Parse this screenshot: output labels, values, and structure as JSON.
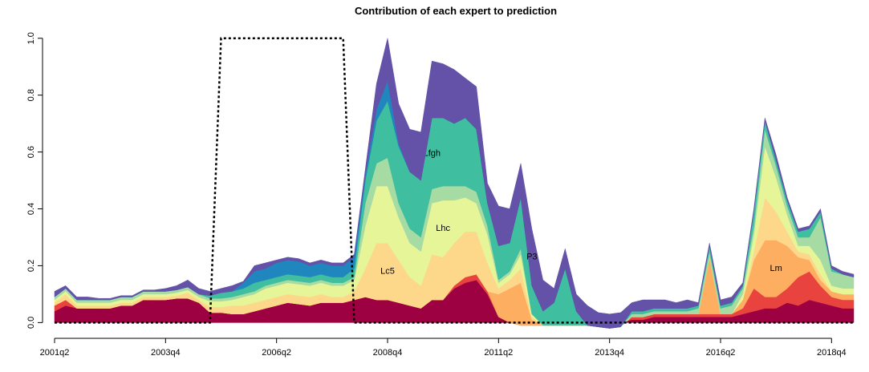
{
  "chart_data": {
    "type": "stacked_area",
    "title": "Contribution of each expert to prediction",
    "categories": [
      "2001q2",
      null,
      null,
      null,
      null,
      null,
      null,
      null,
      null,
      null,
      "2003q4",
      null,
      null,
      null,
      null,
      null,
      null,
      null,
      null,
      null,
      "2006q2",
      null,
      null,
      null,
      null,
      null,
      null,
      null,
      null,
      null,
      "2008q4",
      null,
      null,
      null,
      null,
      null,
      null,
      null,
      null,
      null,
      "2011q2",
      null,
      null,
      null,
      null,
      null,
      null,
      null,
      null,
      null,
      "2013q4",
      null,
      null,
      null,
      null,
      null,
      null,
      null,
      null,
      null,
      "2016q2",
      null,
      null,
      null,
      null,
      null,
      null,
      null,
      null,
      null,
      "2018q4",
      null,
      null
    ],
    "ylim": [
      -0.03,
      1.05
    ],
    "yticks": [
      {
        "value": 0,
        "label": "0.0"
      },
      {
        "value": 0.2,
        "label": "0.2"
      },
      {
        "value": 0.4,
        "label": "0.4"
      },
      {
        "value": 0.6,
        "label": "0.6"
      },
      {
        "value": 0.8,
        "label": "0.8"
      },
      {
        "value": 1,
        "label": "1.0"
      }
    ],
    "series": [
      {
        "color": "#9e0142",
        "values": [
          0.04,
          0.06,
          0.05,
          0.05,
          0.05,
          0.05,
          0.06,
          0.06,
          0.08,
          0.08,
          0.08,
          0.085,
          0.085,
          0.07,
          0.035,
          0.035,
          0.03,
          0.03,
          0.04,
          0.05,
          0.06,
          0.07,
          0.065,
          0.06,
          0.07,
          0.07,
          0.07,
          0.08,
          0.09,
          0.08,
          0.08,
          0.07,
          0.06,
          0.05,
          0.08,
          0.08,
          0.12,
          0.14,
          0.15,
          0.1,
          0.02,
          0,
          0,
          0,
          0,
          0,
          0,
          0,
          0,
          0,
          0,
          0,
          0.01,
          0.01,
          0.02,
          0.02,
          0.02,
          0.02,
          0.02,
          0.02,
          0.02,
          0.02,
          0.03,
          0.04,
          0.05,
          0.05,
          0.07,
          0.06,
          0.08,
          0.07,
          0.06,
          0.05,
          0.05
        ]
      },
      {
        "color": "#e8433f",
        "values": [
          0.02,
          0.02,
          0,
          0,
          0,
          0,
          0,
          0,
          0,
          0,
          0,
          0,
          0,
          0,
          0,
          0,
          0,
          0,
          0,
          0,
          0,
          0,
          0,
          0,
          0,
          0,
          0,
          0,
          0,
          0,
          0,
          0,
          0,
          0,
          0,
          0,
          0.01,
          0.02,
          0.02,
          0.01,
          0,
          0,
          -0.01,
          -0.01,
          -0.01,
          -0.01,
          -0.01,
          -0.01,
          -0.01,
          -0.015,
          -0.02,
          -0.015,
          0.01,
          0.01,
          0.01,
          0.01,
          0.01,
          0.01,
          0.01,
          0.01,
          0.01,
          0.01,
          0.02,
          0.08,
          0.04,
          0.04,
          0.05,
          0.1,
          0.1,
          0.06,
          0.03,
          0.03,
          0.03
        ]
      },
      {
        "name": "Lm",
        "color": "#fdae61",
        "values": [
          0,
          0,
          0,
          0,
          0,
          0,
          0,
          0,
          0,
          0,
          0,
          0,
          0,
          0,
          0,
          0,
          0,
          0,
          0,
          0,
          0,
          0,
          0,
          0,
          0,
          0,
          0,
          0,
          0,
          0,
          0,
          0,
          0,
          0,
          0,
          0,
          0,
          0,
          0,
          0,
          0.08,
          0.12,
          0.15,
          0.02,
          0,
          0,
          0,
          0,
          0,
          0,
          0,
          0,
          0,
          0,
          0,
          0,
          0,
          0,
          0,
          0.2,
          0,
          0,
          0.03,
          0.1,
          0.2,
          0.2,
          0.15,
          0.07,
          0.04,
          0.02,
          0.02,
          0.02,
          0.02
        ]
      },
      {
        "name": "Lc5",
        "color": "#fed88a",
        "values": [
          0.01,
          0.02,
          0.01,
          0.01,
          0.01,
          0.01,
          0.01,
          0.01,
          0.01,
          0.01,
          0.01,
          0.01,
          0.02,
          0.01,
          0.02,
          0.02,
          0.03,
          0.03,
          0.03,
          0.03,
          0.03,
          0.03,
          0.03,
          0.03,
          0.03,
          0.02,
          0.02,
          0.03,
          0.1,
          0.2,
          0.2,
          0.15,
          0.1,
          0.08,
          0.16,
          0.15,
          0.15,
          0.16,
          0.15,
          0.1,
          0.02,
          0.03,
          0.05,
          0.01,
          0,
          0,
          0,
          0,
          0,
          0,
          0,
          0,
          0,
          0,
          0,
          0,
          0,
          0,
          0,
          0,
          0,
          0,
          0,
          0.03,
          0.15,
          0.1,
          0.05,
          0.02,
          0.02,
          0.02,
          0,
          0,
          0
        ]
      },
      {
        "name": "Lhc",
        "color": "#e6f598",
        "values": [
          0.01,
          0.01,
          0.01,
          0.01,
          0.01,
          0.01,
          0.01,
          0.01,
          0.01,
          0.01,
          0.01,
          0.01,
          0.01,
          0.01,
          0.02,
          0.02,
          0.02,
          0.03,
          0.03,
          0.04,
          0.04,
          0.04,
          0.04,
          0.04,
          0.04,
          0.04,
          0.04,
          0.04,
          0.15,
          0.2,
          0.2,
          0.15,
          0.12,
          0.12,
          0.18,
          0.2,
          0.15,
          0.12,
          0.1,
          0.1,
          0.02,
          0.02,
          0.05,
          0.01,
          0,
          0,
          0,
          0,
          0,
          0,
          0,
          0,
          0,
          0,
          0,
          0,
          0,
          0,
          0,
          0,
          0,
          0,
          0.02,
          0.06,
          0.18,
          0.12,
          0.06,
          0.02,
          0.03,
          0.05,
          0.02,
          0.02,
          0.02
        ]
      },
      {
        "color": "#a6dba4",
        "values": [
          0.01,
          0.01,
          0.01,
          0.01,
          0.01,
          0.01,
          0.01,
          0.01,
          0.01,
          0.01,
          0.01,
          0.01,
          0.01,
          0.01,
          0.01,
          0.01,
          0.01,
          0.01,
          0.01,
          0.01,
          0.01,
          0.01,
          0.01,
          0.01,
          0.01,
          0.01,
          0.01,
          0.01,
          0.08,
          0.08,
          0.1,
          0.05,
          0.05,
          0.05,
          0.05,
          0.05,
          0.05,
          0.04,
          0.04,
          0.03,
          0.01,
          0.01,
          0.02,
          0,
          0,
          0,
          0,
          0,
          0,
          0,
          0,
          0,
          0.01,
          0.01,
          0.01,
          0.01,
          0.01,
          0.01,
          0.02,
          0.02,
          0.02,
          0.03,
          0.02,
          0.03,
          0.06,
          0.04,
          0.03,
          0.03,
          0.03,
          0.15,
          0.05,
          0.05,
          0.04
        ]
      },
      {
        "name": "Lfgh",
        "color": "#3fbfa0",
        "values": [
          0,
          0,
          0,
          0,
          0,
          0,
          0,
          0,
          0,
          0,
          0,
          0,
          0,
          0,
          0.01,
          0.02,
          0.02,
          0.02,
          0.03,
          0.02,
          0.02,
          0.02,
          0.02,
          0.02,
          0.02,
          0.02,
          0.02,
          0.03,
          0.08,
          0.15,
          0.2,
          0.2,
          0.2,
          0.2,
          0.25,
          0.24,
          0.22,
          0.24,
          0.22,
          0.08,
          0.12,
          0.1,
          0.18,
          0.1,
          0.05,
          0.08,
          0.2,
          0.05,
          0,
          0,
          0,
          0,
          0.01,
          0.01,
          0.01,
          0.01,
          0.01,
          0.01,
          0.01,
          0.02,
          0.01,
          0.01,
          0.01,
          0.05,
          0.03,
          0.02,
          0.02,
          0.02,
          0.03,
          0.02,
          0.01,
          0,
          0
        ]
      },
      {
        "color": "#1f86be",
        "values": [
          0,
          0,
          0,
          0,
          0,
          0,
          0,
          0,
          0,
          0,
          0,
          0,
          0,
          0,
          0,
          0,
          0,
          0.02,
          0.04,
          0.04,
          0.05,
          0.05,
          0.05,
          0.04,
          0.04,
          0.04,
          0.04,
          0.04,
          0.02,
          0.04,
          0.07,
          0.01,
          0,
          0,
          0,
          0,
          0,
          0,
          0,
          0,
          0,
          0,
          0,
          0,
          0,
          0,
          0,
          0,
          0,
          0,
          0,
          0,
          0,
          0,
          0,
          0,
          0,
          0,
          0,
          0,
          0,
          0,
          0,
          0,
          0,
          0,
          0,
          0,
          0,
          0,
          0,
          0,
          0
        ]
      },
      {
        "name": "P3",
        "color": "#6452a8",
        "values": [
          0.02,
          0.01,
          0.01,
          0.01,
          0.005,
          0.005,
          0.005,
          0.005,
          0.005,
          0.005,
          0.01,
          0.015,
          0.025,
          0.02,
          0.015,
          0.015,
          0.02,
          0.005,
          0.02,
          0.02,
          0.01,
          0.01,
          0.01,
          0.01,
          0.01,
          0.01,
          0.01,
          0.01,
          0.02,
          0.09,
          0.15,
          0.14,
          0.15,
          0.17,
          0.2,
          0.19,
          0.19,
          0.14,
          0.15,
          0.07,
          0.14,
          0.12,
          0.12,
          0.2,
          0.11,
          0.05,
          0.07,
          0.06,
          0.07,
          0.05,
          0.05,
          0.05,
          0.03,
          0.04,
          0.03,
          0.03,
          0.02,
          0.03,
          0.01,
          0.01,
          0.02,
          0.02,
          0.01,
          0.01,
          0.01,
          0.02,
          0.01,
          0.01,
          0.01,
          0.01,
          0.01,
          0.01,
          0.01
        ]
      }
    ],
    "dashed_line": {
      "color": "#000000",
      "values": [
        0,
        0,
        0,
        0,
        0,
        0,
        0,
        0,
        0,
        0,
        0,
        0,
        0,
        0,
        0,
        1,
        1,
        1,
        1,
        1,
        1,
        1,
        1,
        1,
        1,
        1,
        1,
        0,
        0,
        0,
        0,
        0,
        0,
        0,
        0,
        0,
        0,
        0,
        0,
        0,
        0,
        0,
        0,
        0,
        0,
        0,
        0,
        0,
        0,
        0,
        0,
        0,
        0,
        0,
        0,
        0,
        0,
        0,
        0,
        0,
        0,
        0,
        0,
        0,
        0,
        0,
        0,
        0,
        0,
        0,
        0,
        0,
        0
      ]
    }
  }
}
